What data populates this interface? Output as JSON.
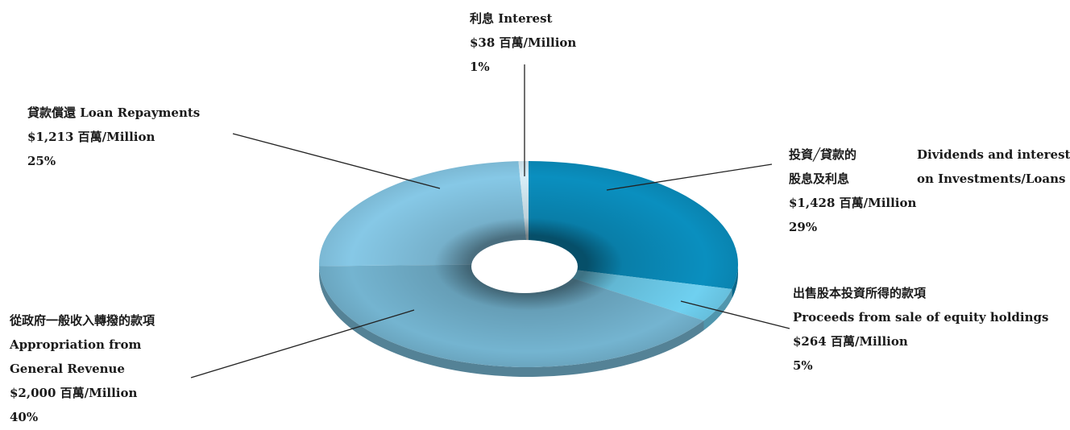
{
  "chart_data": {
    "type": "pie",
    "style": "3d-donut",
    "slices": [
      {
        "key": "dividends",
        "label_zh": "投資╱貸款的股息及利息",
        "label_en": "Dividends and interest on Investments/Loans",
        "amount": 1428,
        "value_text": "$1,428 百萬/Million",
        "percent": 29,
        "percent_text": "29%",
        "color": "#0a8fbf"
      },
      {
        "key": "equity_sale",
        "label_zh": "出售股本投資所得的款項",
        "label_en": "Proceeds from sale of equity holdings",
        "amount": 264,
        "value_text": "$264 百萬/Million",
        "percent": 5,
        "percent_text": "5%",
        "color": "#6fd0f0"
      },
      {
        "key": "appropriation",
        "label_zh": "從政府一般收入轉撥的款項",
        "label_en": "Appropriation from General Revenue",
        "amount": 2000,
        "value_text": "$2,000 百萬/Million",
        "percent": 40,
        "percent_text": "40%",
        "color": "#74b4d0"
      },
      {
        "key": "loan_repayments",
        "label_zh": "貸款償還",
        "label_en": "Loan Repayments",
        "amount": 1213,
        "value_text": "$1,213 百萬/Million",
        "percent": 25,
        "percent_text": "25%",
        "color": "#86c8e6"
      },
      {
        "key": "interest",
        "label_zh": "利息",
        "label_en": "Interest",
        "amount": 38,
        "value_text": "$38 百萬/Million",
        "percent": 1,
        "percent_text": "1%",
        "color": "#d8eef8"
      }
    ]
  },
  "labels": {
    "interest": {
      "line1": "利息 Interest",
      "line2": "$38 百萬/Million",
      "line3": "1%"
    },
    "loan_repayments": {
      "line1": "貸款償還 Loan Repayments",
      "line2": "$1,213 百萬/Million",
      "line3": "25%"
    },
    "dividends": {
      "zh1": "投資╱貸款的",
      "en1": "Dividends and interest",
      "zh2": "股息及利息",
      "en2": "on Investments/Loans",
      "line3": "$1,428 百萬/Million",
      "line4": "29%"
    },
    "equity_sale": {
      "line1": "出售股本投資所得的款項",
      "line2": "Proceeds from sale of equity holdings",
      "line3": "$264 百萬/Million",
      "line4": "5%"
    },
    "appropriation": {
      "line1": "從政府一般收入轉撥的款項",
      "line2": "Appropriation from",
      "line3": "General Revenue",
      "line4": "$2,000 百萬/Million",
      "line5": "40%"
    }
  }
}
